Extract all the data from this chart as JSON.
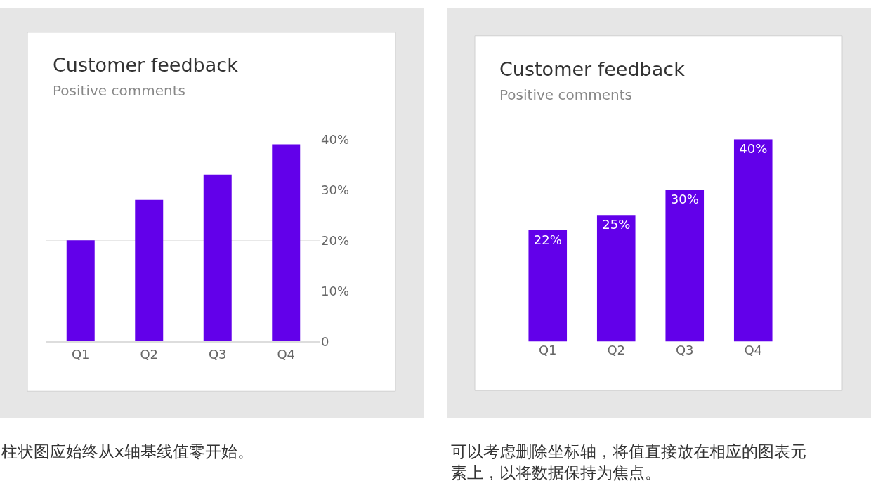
{
  "chart_data": [
    {
      "type": "bar",
      "title": "Customer feedback",
      "subtitle": "Positive comments",
      "categories": [
        "Q1",
        "Q2",
        "Q3",
        "Q4"
      ],
      "series": [
        {
          "color": "#6200ea",
          "values": [
            20,
            28,
            33,
            39
          ]
        }
      ],
      "ylim": [
        0,
        40
      ],
      "yticks": [
        0,
        {
          "value": 10,
          "label": "10%"
        },
        {
          "value": 20,
          "label": "20%"
        },
        {
          "value": 30,
          "label": "30%"
        },
        {
          "value": 40,
          "label": "40%"
        }
      ],
      "grid": "y",
      "annotations": [
        "柱状图应始终从x轴基线值零开始。"
      ]
    },
    {
      "type": "bar",
      "title": "Customer feedback",
      "subtitle": "Positive comments",
      "categories": [
        "Q1",
        "Q2",
        "Q3",
        "Q4"
      ],
      "series": [
        {
          "color": "#6200ea",
          "values": [
            22,
            25,
            30,
            40
          ],
          "value_labels": [
            "22%",
            "25%",
            "30%",
            "40%"
          ]
        }
      ],
      "ylim": [
        0,
        40
      ],
      "tick_labels": "x",
      "grid": false,
      "annotations": [
        "可以考虑删除坐标轴，将值直接放在相应的图表元素上，以将数据保持为焦点。"
      ]
    }
  ]
}
